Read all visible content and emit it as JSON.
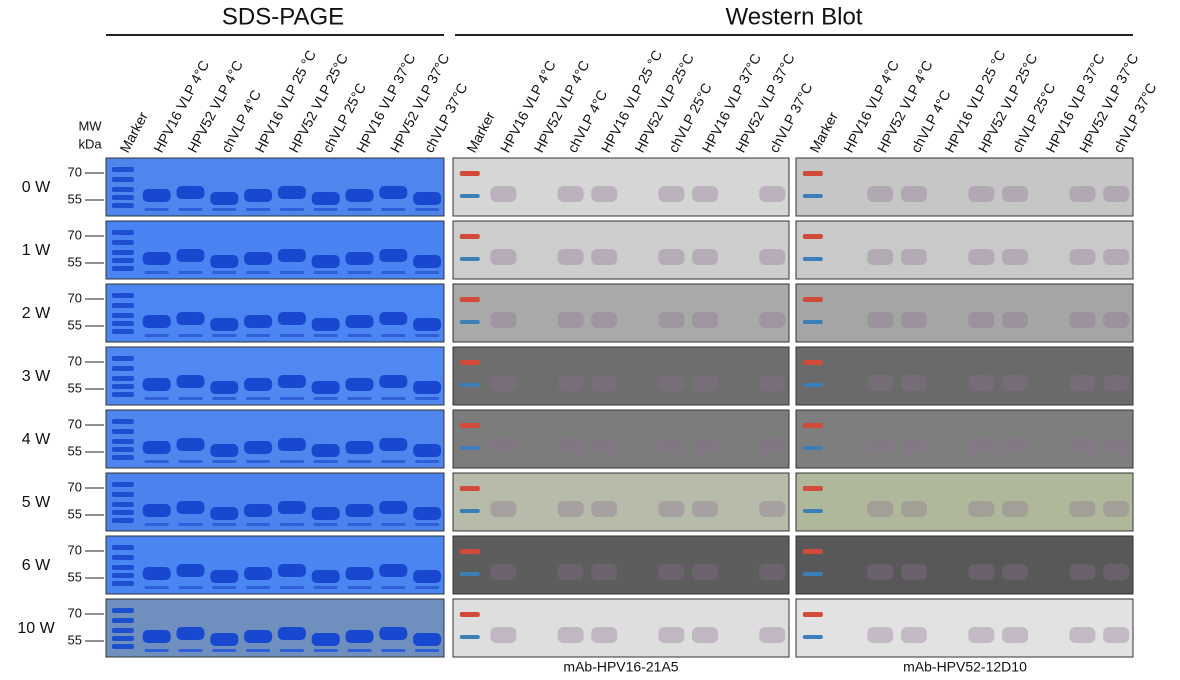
{
  "header": {
    "sds_title": "SDS-PAGE",
    "wb_title": "Western Blot"
  },
  "mw": {
    "label": "MW",
    "unit": "kDa",
    "markers": [
      "70",
      "55"
    ]
  },
  "lanes": [
    "Marker",
    "HPV16 VLP 4°C",
    "HPV52 VLP 4°C",
    "chVLP 4°C",
    "HPV16 VLP 25 °C",
    "HPV52 VLP 25°C",
    "chVLP 25°C",
    "HPV16 VLP 37°C",
    "HPV52 VLP 37°C",
    "chVLP 37°C"
  ],
  "rows": [
    "0 W",
    "1 W",
    "2 W",
    "3 W",
    "4 W",
    "5 W",
    "6 W",
    "10 W"
  ],
  "antibodies": [
    "mAb-HPV16-21A5",
    "mAb-HPV52-12D10"
  ]
}
